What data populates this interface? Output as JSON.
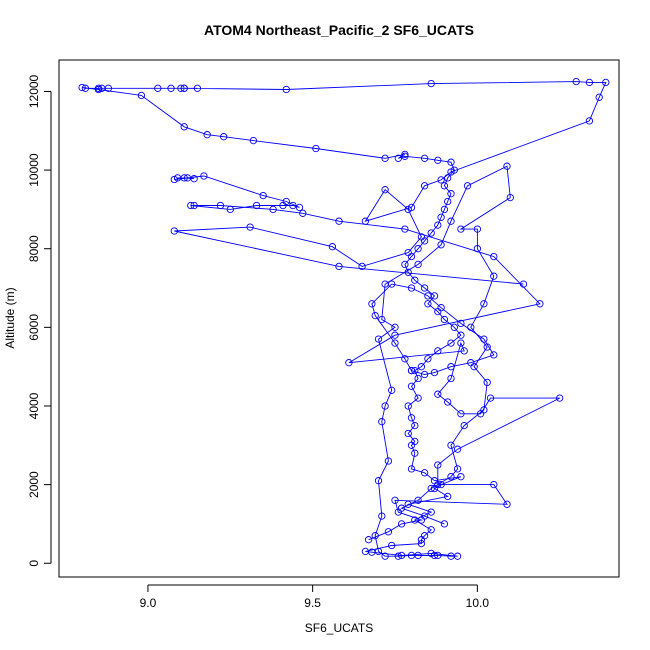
{
  "chart_data": {
    "type": "line",
    "title": "ATOM4 Northeast_Pacific_2 SF6_UCATS",
    "xlabel": "SF6_UCATS",
    "ylabel": "Altitude (m)",
    "xlim": [
      8.73,
      10.43
    ],
    "ylim": [
      -350,
      12800
    ],
    "x_ticks": [
      9.0,
      9.5,
      10.0
    ],
    "x_tick_labels": [
      "9.0",
      "9.5",
      "10.0"
    ],
    "y_ticks": [
      0,
      2000,
      4000,
      6000,
      8000,
      10000,
      12000
    ],
    "y_tick_labels": [
      "0",
      "2000",
      "4000",
      "6000",
      "8000",
      "10000",
      "12000"
    ],
    "grid": false,
    "marker": "open-circle",
    "line_color": "#0000ff",
    "series": [
      {
        "points": [
          [
            9.82,
            200
          ],
          [
            9.88,
            200
          ],
          [
            9.92,
            180
          ],
          [
            9.94,
            180
          ],
          [
            9.86,
            250
          ],
          [
            9.77,
            200
          ],
          [
            9.68,
            280
          ],
          [
            9.66,
            300
          ],
          [
            9.74,
            450
          ],
          [
            9.83,
            500
          ],
          [
            9.83,
            600
          ],
          [
            9.84,
            700
          ],
          [
            9.86,
            850
          ],
          [
            9.81,
            1100
          ],
          [
            9.86,
            1300
          ],
          [
            9.79,
            1500
          ],
          [
            9.91,
            1700
          ],
          [
            9.87,
            1900
          ],
          [
            9.89,
            2000
          ],
          [
            9.95,
            2200
          ],
          [
            9.87,
            2100
          ],
          [
            9.84,
            2300
          ],
          [
            9.8,
            2400
          ],
          [
            9.81,
            2800
          ],
          [
            9.8,
            3000
          ],
          [
            9.81,
            3100
          ],
          [
            9.79,
            3300
          ],
          [
            9.81,
            3500
          ],
          [
            9.8,
            3700
          ],
          [
            9.79,
            4000
          ],
          [
            9.82,
            4200
          ],
          [
            9.8,
            4500
          ],
          [
            9.82,
            4700
          ],
          [
            9.81,
            4900
          ],
          [
            9.83,
            5000
          ],
          [
            9.85,
            5200
          ],
          [
            9.88,
            5400
          ],
          [
            9.92,
            5600
          ],
          [
            9.95,
            5800
          ],
          [
            9.93,
            6000
          ],
          [
            9.9,
            6200
          ],
          [
            9.88,
            6400
          ],
          [
            9.85,
            6600
          ],
          [
            9.87,
            6800
          ],
          [
            9.84,
            7000
          ],
          [
            9.81,
            7200
          ],
          [
            9.79,
            7400
          ],
          [
            9.78,
            7600
          ],
          [
            9.8,
            7800
          ],
          [
            9.82,
            8000
          ],
          [
            9.84,
            8200
          ],
          [
            9.86,
            8400
          ],
          [
            9.88,
            8600
          ],
          [
            9.89,
            8800
          ],
          [
            9.9,
            9000
          ],
          [
            9.91,
            9200
          ],
          [
            9.92,
            9400
          ],
          [
            9.9,
            9600
          ],
          [
            9.91,
            9800
          ],
          [
            9.93,
            10000
          ],
          [
            9.92,
            10200
          ],
          [
            9.88,
            10250
          ],
          [
            9.84,
            10300
          ],
          [
            9.78,
            10350
          ],
          [
            9.76,
            10300
          ],
          [
            9.78,
            10400
          ],
          [
            9.72,
            10300
          ],
          [
            9.51,
            10550
          ],
          [
            9.32,
            10750
          ],
          [
            9.23,
            10850
          ],
          [
            9.18,
            10900
          ],
          [
            9.11,
            11100
          ],
          [
            8.98,
            11900
          ],
          [
            8.85,
            12050
          ],
          [
            8.8,
            12100
          ],
          [
            8.81,
            12080
          ],
          [
            8.85,
            12080
          ],
          [
            8.86,
            12080
          ],
          [
            8.88,
            12080
          ],
          [
            9.03,
            12080
          ],
          [
            9.07,
            12080
          ],
          [
            9.1,
            12080
          ],
          [
            9.11,
            12080
          ],
          [
            9.15,
            12080
          ],
          [
            9.11,
            12080
          ],
          [
            9.42,
            12050
          ],
          [
            9.86,
            12200
          ],
          [
            10.3,
            12250
          ],
          [
            10.34,
            12230
          ],
          [
            10.39,
            12230
          ],
          [
            10.37,
            11850
          ],
          [
            10.34,
            11250
          ],
          [
            9.92,
            9950
          ],
          [
            9.89,
            9750
          ],
          [
            9.84,
            9600
          ],
          [
            9.8,
            9050
          ],
          [
            9.66,
            8700
          ],
          [
            9.72,
            9500
          ],
          [
            9.79,
            9000
          ],
          [
            9.83,
            8300
          ],
          [
            9.79,
            7900
          ],
          [
            9.65,
            7550
          ],
          [
            9.56,
            8050
          ],
          [
            9.31,
            8550
          ],
          [
            9.08,
            8450
          ],
          [
            9.58,
            7550
          ],
          [
            10.14,
            7100
          ]
        ]
      },
      {
        "points": [
          [
            9.87,
            200
          ],
          [
            9.8,
            200
          ],
          [
            9.76,
            180
          ],
          [
            9.72,
            180
          ],
          [
            9.7,
            300
          ],
          [
            9.69,
            700
          ],
          [
            9.71,
            1200
          ],
          [
            9.7,
            2100
          ],
          [
            9.73,
            2600
          ],
          [
            9.71,
            3600
          ],
          [
            9.72,
            4000
          ],
          [
            9.74,
            4400
          ],
          [
            9.7,
            5700
          ],
          [
            9.75,
            6000
          ],
          [
            9.71,
            6200
          ],
          [
            9.72,
            7100
          ],
          [
            9.82,
            7600
          ],
          [
            9.89,
            8100
          ],
          [
            9.92,
            8700
          ],
          [
            9.97,
            9600
          ],
          [
            10.09,
            10100
          ],
          [
            10.1,
            9300
          ],
          [
            9.95,
            8500
          ],
          [
            10.0,
            8500
          ],
          [
            10.0,
            8000
          ],
          [
            10.05,
            7300
          ],
          [
            10.02,
            6600
          ],
          [
            9.98,
            6000
          ],
          [
            10.03,
            5500
          ],
          [
            9.99,
            5000
          ],
          [
            10.03,
            4600
          ],
          [
            10.02,
            3900
          ],
          [
            9.96,
            3500
          ],
          [
            9.92,
            3000
          ],
          [
            9.94,
            2400
          ],
          [
            9.92,
            2200
          ],
          [
            9.86,
            1900
          ],
          [
            9.82,
            1600
          ],
          [
            9.77,
            1400
          ],
          [
            9.84,
            1200
          ],
          [
            9.9,
            1000
          ]
        ]
      },
      {
        "points": [
          [
            9.09,
            9800
          ],
          [
            9.12,
            9800
          ],
          [
            9.14,
            9780
          ],
          [
            9.11,
            9800
          ],
          [
            9.08,
            9760
          ],
          [
            9.17,
            9850
          ],
          [
            9.35,
            9350
          ],
          [
            9.42,
            9200
          ],
          [
            9.46,
            9050
          ],
          [
            9.44,
            9100
          ],
          [
            9.41,
            9100
          ],
          [
            9.33,
            9100
          ],
          [
            9.25,
            9000
          ],
          [
            9.13,
            9100
          ],
          [
            9.14,
            9100
          ],
          [
            9.22,
            9100
          ],
          [
            9.38,
            9000
          ],
          [
            9.47,
            8900
          ],
          [
            9.58,
            8700
          ],
          [
            9.78,
            8500
          ],
          [
            10.05,
            7800
          ],
          [
            10.19,
            6600
          ],
          [
            9.75,
            5800
          ],
          [
            9.61,
            5100
          ],
          [
            9.96,
            5400
          ],
          [
            9.95,
            5600
          ],
          [
            9.92,
            4700
          ],
          [
            9.88,
            4300
          ],
          [
            9.91,
            4100
          ],
          [
            9.95,
            3800
          ],
          [
            10.01,
            3800
          ],
          [
            10.04,
            4200
          ],
          [
            10.25,
            4200
          ],
          [
            9.94,
            2900
          ],
          [
            9.88,
            2500
          ],
          [
            9.88,
            2000
          ],
          [
            10.05,
            2000
          ],
          [
            10.09,
            1500
          ],
          [
            9.75,
            1600
          ],
          [
            9.76,
            1300
          ],
          [
            9.83,
            1100
          ],
          [
            9.77,
            1000
          ],
          [
            9.73,
            800
          ],
          [
            9.67,
            600
          ]
        ]
      },
      {
        "points": [
          [
            9.8,
            4900
          ],
          [
            9.84,
            4800
          ],
          [
            9.87,
            4850
          ],
          [
            9.92,
            5000
          ],
          [
            9.98,
            5100
          ],
          [
            10.05,
            5300
          ],
          [
            10.02,
            5700
          ],
          [
            9.95,
            6100
          ],
          [
            9.89,
            6500
          ],
          [
            9.85,
            6800
          ],
          [
            9.8,
            7000
          ],
          [
            9.74,
            7100
          ],
          [
            9.68,
            6600
          ],
          [
            9.69,
            6300
          ],
          [
            9.75,
            5600
          ],
          [
            9.78,
            5200
          ],
          [
            9.8,
            4900
          ]
        ]
      }
    ]
  }
}
